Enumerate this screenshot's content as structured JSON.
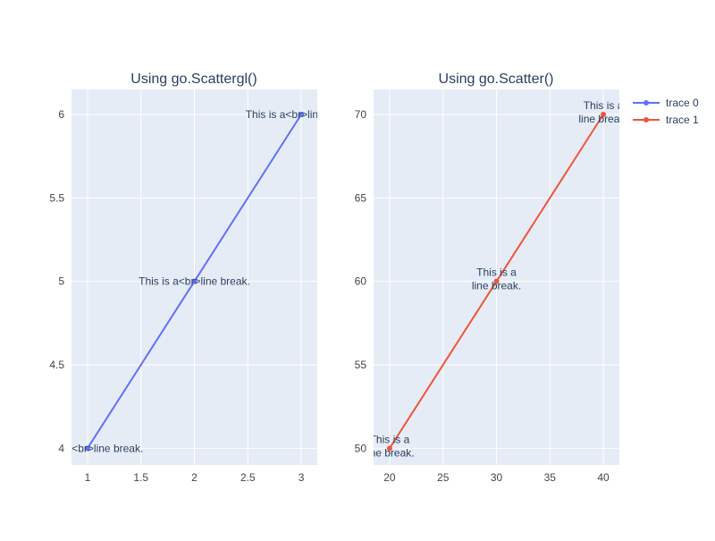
{
  "colors": {
    "plot_bg": "#E5ECF6",
    "grid": "#FFFFFF",
    "tick_text": "#444444",
    "title_text": "#2A3F5F",
    "trace0": "#636EFA",
    "trace1": "#EF553B"
  },
  "legend": {
    "placement": "top-right",
    "items": [
      {
        "name": "trace 0"
      },
      {
        "name": "trace 1"
      }
    ]
  },
  "chart_data": [
    {
      "type": "line",
      "title": "Using go.Scattergl()",
      "xlabel": "",
      "ylabel": "",
      "xlim": [
        0.85,
        3.15
      ],
      "ylim": [
        3.9,
        6.15
      ],
      "xticks": [
        "1",
        "1.5",
        "2",
        "2.5",
        "3"
      ],
      "xtick_values": [
        1,
        1.5,
        2,
        2.5,
        3
      ],
      "yticks": [
        "4",
        "4.5",
        "5",
        "5.5",
        "6"
      ],
      "ytick_values": [
        4,
        4.5,
        5,
        5.5,
        6
      ],
      "grid": true,
      "series": [
        {
          "name": "trace 0",
          "mode": "lines+markers+text",
          "x": [
            1,
            2,
            3
          ],
          "y": [
            4,
            5,
            6
          ],
          "text": [
            "This is a<br>line break.",
            "This is a<br>line break.",
            "This is a<br>line break."
          ]
        }
      ]
    },
    {
      "type": "line",
      "title": "Using go.Scatter()",
      "xlabel": "",
      "ylabel": "",
      "xlim": [
        18.5,
        41.5
      ],
      "ylim": [
        49,
        71.5
      ],
      "xticks": [
        "20",
        "25",
        "30",
        "35",
        "40"
      ],
      "xtick_values": [
        20,
        25,
        30,
        35,
        40
      ],
      "yticks": [
        "50",
        "55",
        "60",
        "65",
        "70"
      ],
      "ytick_values": [
        50,
        55,
        60,
        65,
        70
      ],
      "grid": true,
      "series": [
        {
          "name": "trace 1",
          "mode": "lines+markers+text",
          "x": [
            20,
            30,
            40
          ],
          "y": [
            50,
            60,
            70
          ],
          "text": [
            [
              "This is a",
              "line break."
            ],
            [
              "This is a",
              "line break."
            ],
            [
              "This is a",
              "line break."
            ]
          ]
        }
      ]
    }
  ]
}
